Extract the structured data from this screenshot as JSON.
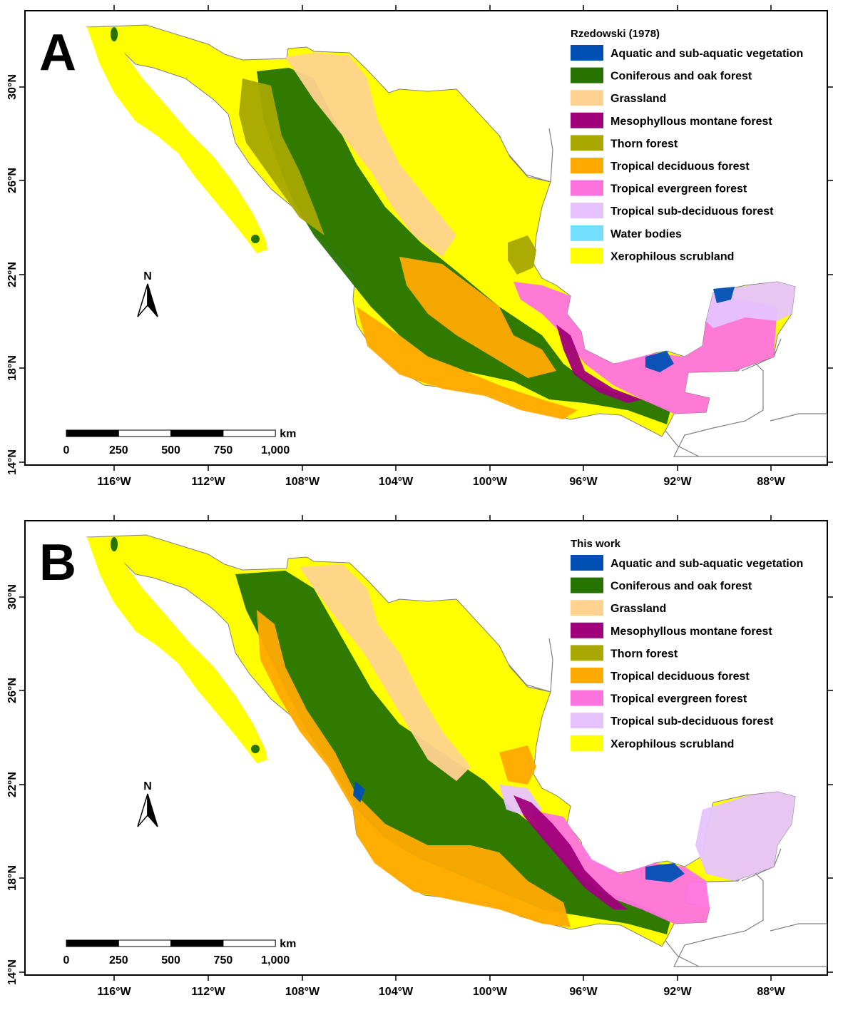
{
  "colors": {
    "aquatic": "#0050b4",
    "coniferous": "#267300",
    "grassland": "#ffd38f",
    "mesophyllous": "#a0007a",
    "thorn": "#a8a800",
    "tropical_deciduous": "#ffaa00",
    "tropical_evergreen": "#ff73df",
    "tropical_subdeciduous": "#e6c3ff",
    "water": "#73dfff",
    "xerophilous": "#ffff00",
    "frame": "#000000",
    "border": "#808080"
  },
  "axes": {
    "lon_ticks": [
      "116°W",
      "112°W",
      "108°W",
      "104°W",
      "100°W",
      "96°W",
      "92°W",
      "88°W"
    ],
    "lat_ticks": [
      "30°N",
      "26°N",
      "22°N",
      "18°N",
      "14°N"
    ]
  },
  "north_arrow": {
    "label": "N"
  },
  "scale_bar": {
    "unit": "km",
    "labels": [
      "0",
      "250",
      "500",
      "750",
      "1,000"
    ]
  },
  "panels": [
    {
      "id": "A",
      "label": "A",
      "legend_title": "Rzedowski (1978)",
      "legend": [
        {
          "label": "Aquatic and sub-aquatic vegetation",
          "color": "#0050b4"
        },
        {
          "label": "Coniferous and oak forest",
          "color": "#267300"
        },
        {
          "label": "Grassland",
          "color": "#ffd38f"
        },
        {
          "label": "Mesophyllous montane forest",
          "color": "#a0007a"
        },
        {
          "label": "Thorn forest",
          "color": "#a8a800"
        },
        {
          "label": "Tropical deciduous forest",
          "color": "#ffaa00"
        },
        {
          "label": "Tropical evergreen forest",
          "color": "#ff73df"
        },
        {
          "label": "Tropical sub-deciduous forest",
          "color": "#e6c3ff"
        },
        {
          "label": "Water bodies",
          "color": "#73dfff"
        },
        {
          "label": "Xerophilous scrubland",
          "color": "#ffff00"
        }
      ]
    },
    {
      "id": "B",
      "label": "B",
      "legend_title": "This work",
      "legend": [
        {
          "label": "Aquatic and sub-aquatic vegetation",
          "color": "#0050b4"
        },
        {
          "label": "Coniferous and oak forest",
          "color": "#267300"
        },
        {
          "label": "Grassland",
          "color": "#ffd38f"
        },
        {
          "label": "Mesophyllous montane forest",
          "color": "#a0007a"
        },
        {
          "label": "Thorn forest",
          "color": "#a8a800"
        },
        {
          "label": "Tropical deciduous forest",
          "color": "#ffaa00"
        },
        {
          "label": "Tropical evergreen forest",
          "color": "#ff73df"
        },
        {
          "label": "Tropical sub-deciduous forest",
          "color": "#e6c3ff"
        },
        {
          "label": "Xerophilous scrubland",
          "color": "#ffff00"
        }
      ]
    }
  ]
}
